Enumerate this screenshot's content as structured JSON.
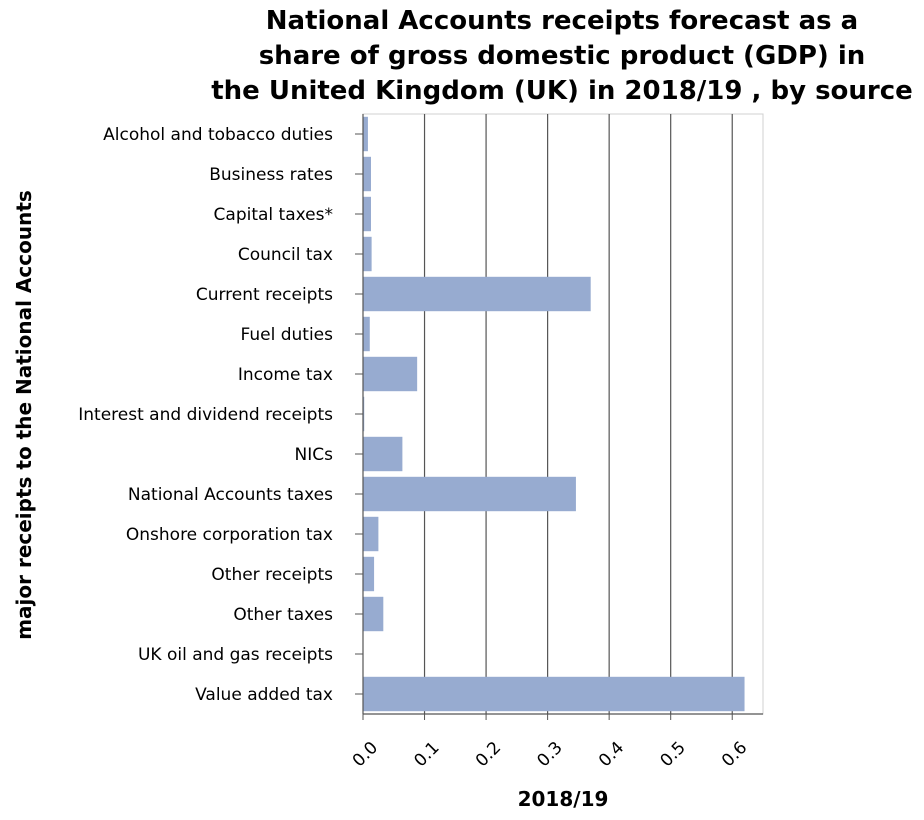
{
  "chart_data": {
    "type": "bar",
    "orientation": "horizontal",
    "title_lines": [
      "National Accounts receipts forecast as a",
      "share of gross domestic product (GDP) in",
      "the United Kingdom (UK) in 2018/19 , by source"
    ],
    "xlabel": "2018/19",
    "ylabel": "major receipts to the National Accounts",
    "categories": [
      "Alcohol and tobacco duties",
      "Business rates",
      "Capital taxes*",
      "Council tax",
      "Current receipts",
      "Fuel duties",
      "Income tax",
      "Interest and dividend receipts",
      "NICs",
      "National Accounts taxes",
      "Onshore corporation tax",
      "Other receipts",
      "Other taxes",
      "UK oil and gas receipts",
      "Value added tax"
    ],
    "values": [
      0.008,
      0.013,
      0.013,
      0.014,
      0.37,
      0.011,
      0.088,
      0.002,
      0.064,
      0.346,
      0.025,
      0.018,
      0.033,
      0.0,
      0.62
    ],
    "xlim": [
      0,
      0.65
    ],
    "xticks": [
      "0.0",
      "0.1",
      "0.2",
      "0.3",
      "0.4",
      "0.5",
      "0.6"
    ],
    "grid": "vertical",
    "bar_color": "#97abd0",
    "legend": "none"
  }
}
